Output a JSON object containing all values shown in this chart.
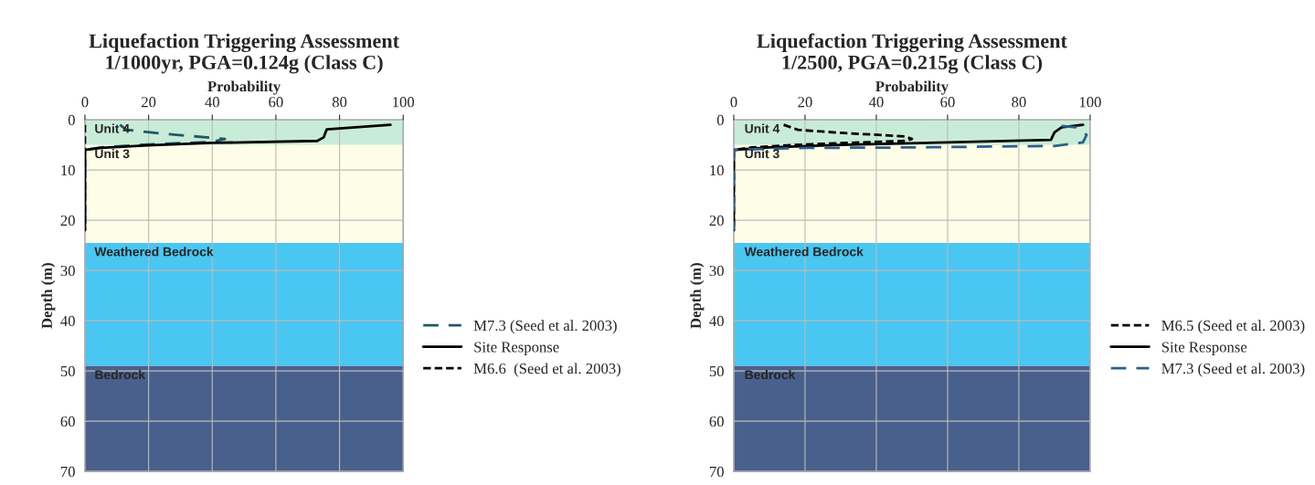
{
  "chart_data": [
    {
      "type": "line",
      "title": "Liquefaction Triggering Assessment\n1/1000yr, PGA=0.124g (Class C)",
      "xlabel": "Probability",
      "ylabel": "Depth (m)",
      "xlim": [
        0,
        100
      ],
      "xticks": [
        0,
        20,
        40,
        60,
        80,
        100
      ],
      "ylim": [
        70,
        0
      ],
      "yticks": [
        0,
        10,
        20,
        30,
        40,
        50,
        60,
        70
      ],
      "grid": true,
      "legend": "right",
      "bands": [
        {
          "axis": "y",
          "from": 0,
          "to": 5,
          "label": "Unit 4",
          "color": "#c9ecd8"
        },
        {
          "axis": "y",
          "from": 5,
          "to": 24.5,
          "label": "Unit 3",
          "color": "#fefde8"
        },
        {
          "axis": "y",
          "from": 24.5,
          "to": 49,
          "label": "Weathered Bedrock",
          "color": "#4ac6f2"
        },
        {
          "axis": "y",
          "from": 49,
          "to": 70,
          "label": "Bedrock",
          "color": "#4a608c"
        }
      ],
      "series": [
        {
          "name": "M7.3 (Seed et al. 2003)",
          "color": "#215868",
          "line_style": "dashed",
          "x": [
            11,
            13,
            25,
            44,
            40,
            20,
            5,
            0,
            0
          ],
          "values": [
            1,
            2,
            2.8,
            3.8,
            4.4,
            4.9,
            5.5,
            6,
            22
          ]
        },
        {
          "name": "Site Response",
          "color": "#000000",
          "line_style": "solid",
          "x": [
            96,
            76,
            75,
            73,
            40,
            20,
            5,
            0,
            0
          ],
          "values": [
            1,
            1.9,
            3.5,
            4.2,
            4.6,
            5.1,
            5.6,
            6,
            22
          ]
        },
        {
          "name": "M6.6  (Seed et al. 2003)",
          "color": "#000000",
          "line_style": "dotted",
          "x": [
            0,
            0,
            0
          ],
          "values": [
            1,
            5,
            22
          ]
        }
      ]
    },
    {
      "type": "line",
      "title": "Liquefaction Triggering Assessment\n1/2500, PGA=0.215g (Class C)",
      "xlabel": "Probability",
      "ylabel": "Depth (m)",
      "xlim": [
        0,
        100
      ],
      "xticks": [
        0,
        20,
        40,
        60,
        80,
        100
      ],
      "ylim": [
        70,
        0
      ],
      "yticks": [
        0,
        10,
        20,
        30,
        40,
        50,
        60,
        70
      ],
      "grid": true,
      "legend": "right",
      "bands": [
        {
          "axis": "y",
          "from": 0,
          "to": 5,
          "label": "Unit 4",
          "color": "#c9ecd8"
        },
        {
          "axis": "y",
          "from": 5,
          "to": 24.5,
          "label": "Unit 3",
          "color": "#fefde8"
        },
        {
          "axis": "y",
          "from": 24.5,
          "to": 49,
          "label": "Weathered Bedrock",
          "color": "#4ac6f2"
        },
        {
          "axis": "y",
          "from": 49,
          "to": 70,
          "label": "Bedrock",
          "color": "#4a608c"
        }
      ],
      "series": [
        {
          "name": "M6.5 (Seed et al. 2003)",
          "color": "#000000",
          "line_style": "dotted",
          "x": [
            14,
            18,
            30,
            48,
            50,
            48,
            20,
            5,
            0,
            0
          ],
          "values": [
            1,
            2,
            2.6,
            3.3,
            3.8,
            4.2,
            4.9,
            5.5,
            6,
            22
          ]
        },
        {
          "name": "Site Response",
          "color": "#000000",
          "line_style": "solid",
          "x": [
            98,
            92,
            90,
            89,
            60,
            30,
            10,
            0,
            0
          ],
          "values": [
            1,
            1.5,
            2.5,
            4,
            4.5,
            5,
            5.5,
            6,
            22
          ]
        },
        {
          "name": "M7.3 (Seed et al. 2003)",
          "color": "#2e5f8a",
          "line_style": "dashed",
          "x": [
            92,
            96,
            99,
            98,
            90,
            50,
            20,
            0,
            0
          ],
          "values": [
            1.2,
            1.5,
            3,
            4.5,
            5.2,
            5.5,
            5.6,
            6,
            22
          ]
        }
      ]
    }
  ]
}
